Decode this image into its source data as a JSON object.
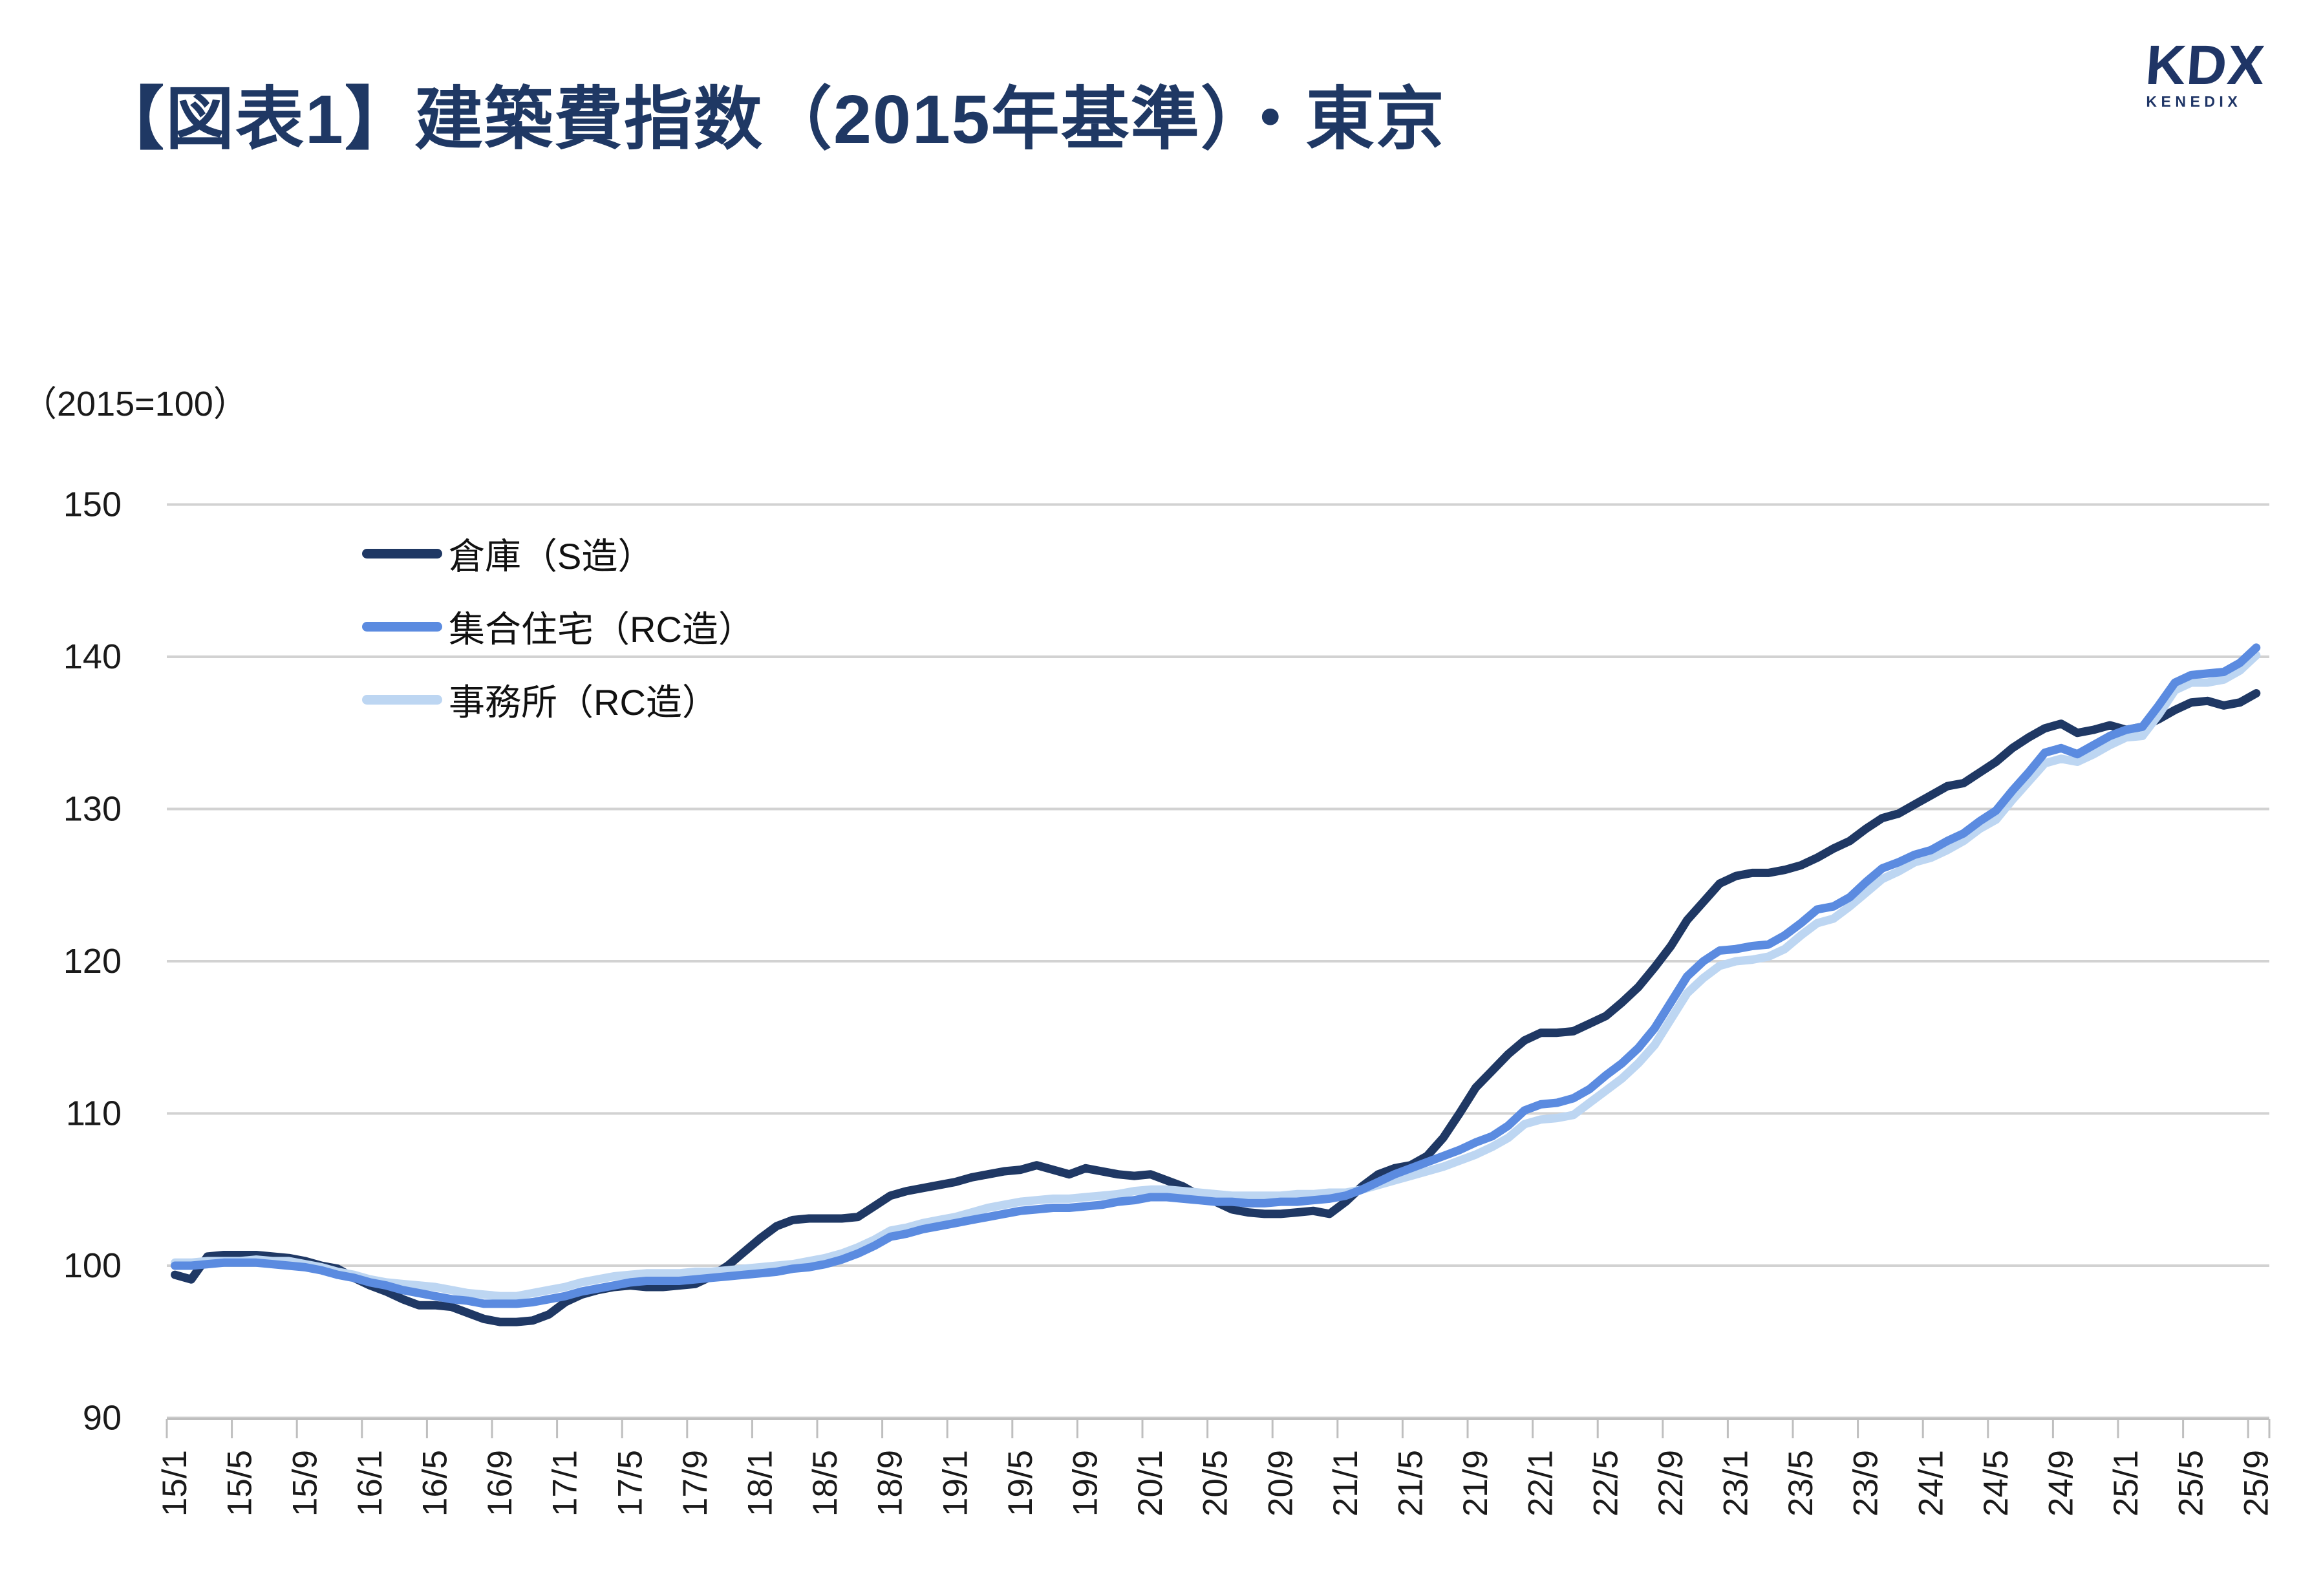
{
  "logo": {
    "text": "KDX",
    "subtext": "KENEDIX",
    "color": "#1f3566"
  },
  "title": {
    "text": "【図表1】建築費指数（2015年基準）・東京",
    "color": "#1f3864"
  },
  "axis_note": "（2015=100）",
  "chart_data": {
    "type": "line",
    "title": "建築費指数（2015年基準）・東京",
    "unit_note": "（2015=100）",
    "ylim": [
      90,
      150
    ],
    "y_ticks": [
      90,
      100,
      110,
      120,
      130,
      140,
      150
    ],
    "grid": true,
    "legend_position": "top-left-inside",
    "x_start": "15/1",
    "x_end": "25/9",
    "x_interval": "monthly",
    "x_tick_labels": [
      "15/1",
      "15/5",
      "15/9",
      "16/1",
      "16/5",
      "16/9",
      "17/1",
      "17/5",
      "17/9",
      "18/1",
      "18/5",
      "18/9",
      "19/1",
      "19/5",
      "19/9",
      "20/1",
      "20/5",
      "20/9",
      "21/1",
      "21/5",
      "21/9",
      "22/1",
      "22/5",
      "22/9",
      "23/1",
      "23/5",
      "23/9",
      "24/1",
      "24/5",
      "24/9",
      "25/1",
      "25/5",
      "25/9"
    ],
    "axis_color": "#bfbfbf",
    "gridline_color": "#d2d2d2",
    "tick_label_color": "#1a1a1a",
    "series": [
      {
        "name": "倉庫（S造）",
        "color": "#1f3864",
        "values": [
          99.4,
          99.1,
          100.6,
          100.7,
          100.7,
          100.7,
          100.6,
          100.5,
          100.3,
          100.0,
          99.8,
          99.2,
          98.7,
          98.3,
          97.8,
          97.4,
          97.4,
          97.3,
          96.9,
          96.5,
          96.3,
          96.3,
          96.4,
          96.8,
          97.6,
          98.1,
          98.4,
          98.6,
          98.7,
          98.6,
          98.6,
          98.7,
          98.8,
          99.3,
          100.0,
          100.9,
          101.8,
          102.6,
          103.0,
          103.1,
          103.1,
          103.1,
          103.2,
          103.9,
          104.6,
          104.9,
          105.1,
          105.3,
          105.5,
          105.8,
          106.0,
          106.2,
          106.3,
          106.6,
          106.3,
          106.0,
          106.4,
          106.2,
          106.0,
          105.9,
          106.0,
          105.6,
          105.2,
          104.6,
          104.2,
          103.7,
          103.5,
          103.4,
          103.4,
          103.5,
          103.6,
          103.4,
          104.2,
          105.2,
          106.0,
          106.4,
          106.6,
          107.2,
          108.4,
          110.0,
          111.7,
          112.8,
          113.9,
          114.8,
          115.3,
          115.3,
          115.4,
          115.9,
          116.4,
          117.3,
          118.3,
          119.6,
          121.0,
          122.7,
          123.9,
          125.1,
          125.6,
          125.8,
          125.8,
          126.0,
          126.3,
          126.8,
          127.4,
          127.9,
          128.7,
          129.4,
          129.7,
          130.3,
          130.9,
          131.5,
          131.7,
          132.4,
          133.1,
          134.0,
          134.7,
          135.3,
          135.6,
          135.0,
          135.2,
          135.5,
          135.2,
          135.4,
          135.9,
          136.5,
          137.0,
          137.1,
          136.8,
          137.0,
          137.6
        ]
      },
      {
        "name": "集合住宅（RC造）",
        "color": "#5b8be0",
        "values": [
          100.0,
          100.0,
          100.1,
          100.2,
          100.2,
          100.2,
          100.1,
          100.0,
          99.9,
          99.7,
          99.4,
          99.2,
          98.9,
          98.7,
          98.4,
          98.2,
          98.0,
          97.8,
          97.7,
          97.5,
          97.5,
          97.5,
          97.6,
          97.8,
          98.0,
          98.3,
          98.5,
          98.7,
          98.9,
          99.0,
          99.0,
          99.0,
          99.1,
          99.2,
          99.3,
          99.4,
          99.5,
          99.6,
          99.8,
          99.9,
          100.1,
          100.4,
          100.8,
          101.3,
          101.9,
          102.1,
          102.4,
          102.6,
          102.8,
          103.0,
          103.2,
          103.4,
          103.6,
          103.7,
          103.8,
          103.8,
          103.9,
          104.0,
          104.2,
          104.3,
          104.5,
          104.5,
          104.4,
          104.3,
          104.2,
          104.2,
          104.1,
          104.1,
          104.2,
          104.2,
          104.3,
          104.4,
          104.6,
          105.0,
          105.5,
          106.0,
          106.4,
          106.8,
          107.2,
          107.6,
          108.1,
          108.5,
          109.2,
          110.2,
          110.6,
          110.7,
          111.0,
          111.6,
          112.5,
          113.3,
          114.3,
          115.6,
          117.3,
          119.0,
          120.0,
          120.7,
          120.8,
          121.0,
          121.1,
          121.7,
          122.5,
          123.4,
          123.6,
          124.2,
          125.2,
          126.1,
          126.5,
          127.0,
          127.3,
          127.9,
          128.4,
          129.2,
          129.9,
          131.2,
          132.4,
          133.7,
          134.0,
          133.6,
          134.2,
          134.8,
          135.2,
          135.4,
          136.8,
          138.3,
          138.8,
          138.9,
          139.0,
          139.6,
          140.6
        ]
      },
      {
        "name": "事務所（RC造）",
        "color": "#bdd6f2",
        "values": [
          100.2,
          100.2,
          100.3,
          100.3,
          100.3,
          100.4,
          100.3,
          100.3,
          100.1,
          99.9,
          99.6,
          99.4,
          99.1,
          98.9,
          98.8,
          98.7,
          98.6,
          98.4,
          98.2,
          98.1,
          98.0,
          98.0,
          98.2,
          98.4,
          98.6,
          98.9,
          99.1,
          99.3,
          99.4,
          99.5,
          99.5,
          99.5,
          99.6,
          99.6,
          99.7,
          99.8,
          99.9,
          100.0,
          100.1,
          100.3,
          100.5,
          100.8,
          101.2,
          101.7,
          102.3,
          102.5,
          102.8,
          103.0,
          103.2,
          103.5,
          103.8,
          104.0,
          104.2,
          104.3,
          104.4,
          104.4,
          104.5,
          104.6,
          104.7,
          104.9,
          105.0,
          105.0,
          104.9,
          104.8,
          104.7,
          104.6,
          104.6,
          104.6,
          104.6,
          104.7,
          104.7,
          104.8,
          104.8,
          105.0,
          105.3,
          105.6,
          105.9,
          106.2,
          106.5,
          106.9,
          107.3,
          107.8,
          108.4,
          109.3,
          109.6,
          109.7,
          109.9,
          110.7,
          111.5,
          112.3,
          113.3,
          114.5,
          116.2,
          117.9,
          118.9,
          119.7,
          120.0,
          120.1,
          120.3,
          120.8,
          121.7,
          122.5,
          122.8,
          123.6,
          124.5,
          125.4,
          125.9,
          126.5,
          126.8,
          127.3,
          127.9,
          128.7,
          129.3,
          130.6,
          131.8,
          133.0,
          133.3,
          133.1,
          133.6,
          134.2,
          134.7,
          134.8,
          136.2,
          137.8,
          138.3,
          138.3,
          138.5,
          139.1,
          140.1
        ]
      }
    ]
  }
}
